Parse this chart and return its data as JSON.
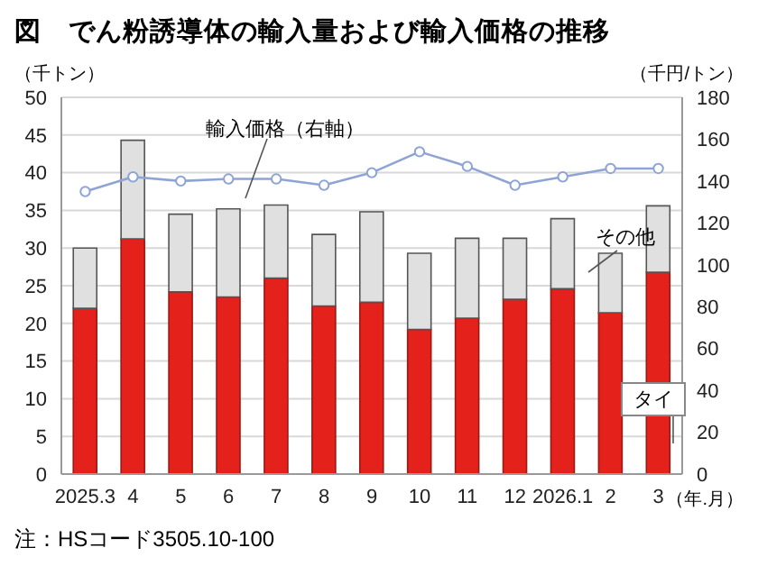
{
  "chart_data": {
    "type": "bar",
    "title": "図　でん粉誘導体の輸入量および輸入価格の推移",
    "ylabel": "（千トン）",
    "y2label": "（千円/トン）",
    "xlabel": "（年.月）",
    "categories": [
      "2025.3",
      "4",
      "5",
      "6",
      "7",
      "8",
      "9",
      "10",
      "11",
      "12",
      "2026.1",
      "2",
      "3"
    ],
    "stacked": true,
    "grid": "y",
    "marker": "circle",
    "ylim": [
      0,
      50
    ],
    "yticks": [
      0,
      5,
      10,
      15,
      20,
      25,
      30,
      35,
      40,
      45,
      50
    ],
    "y2lim": [
      0,
      180
    ],
    "y2ticks": [
      0,
      20,
      40,
      60,
      80,
      100,
      120,
      140,
      160,
      180
    ],
    "series": [
      {
        "name": "タイ",
        "color": "#e5211c",
        "values": [
          22,
          31.2,
          24.2,
          23.5,
          26,
          22.3,
          22.8,
          19.2,
          20.7,
          23.2,
          24.6,
          21.4,
          26.8
        ]
      },
      {
        "name": "その他",
        "color": "#e0e0e0",
        "values": [
          8,
          13.1,
          10.3,
          11.7,
          9.7,
          9.5,
          12,
          10.1,
          10.6,
          8.1,
          9.3,
          7.9,
          8.8
        ]
      },
      {
        "name": "輸入価格（右軸）",
        "type": "line",
        "axis": "y2",
        "color": "#8ea4d4",
        "values": [
          135,
          142,
          140,
          141,
          141,
          138,
          144,
          154,
          147,
          138,
          142,
          146,
          146
        ]
      }
    ],
    "annotations": [
      "注：HSコード3505.10-100"
    ]
  }
}
